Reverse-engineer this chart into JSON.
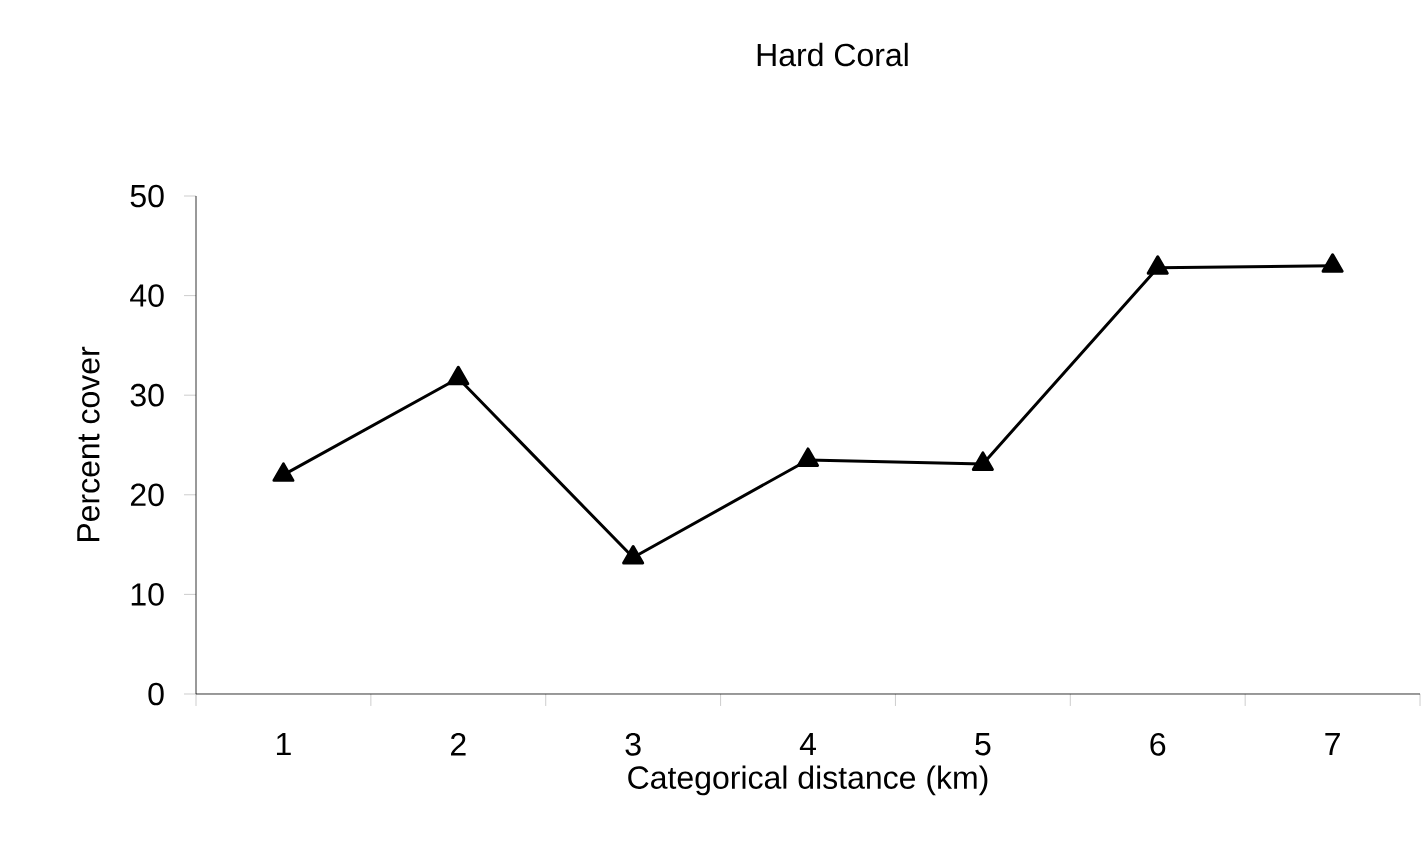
{
  "chart_data": {
    "type": "line",
    "title": "Hard Coral",
    "xlabel": "Categorical distance (km)",
    "ylabel": "Percent cover",
    "categories": [
      "1",
      "2",
      "3",
      "4",
      "5",
      "6",
      "7"
    ],
    "series": [
      {
        "color": "#000000",
        "values": [
          22,
          31.7,
          13.7,
          23.5,
          23.1,
          42.8,
          43.0
        ]
      }
    ],
    "ylim": [
      0,
      50
    ],
    "yticks": [
      0,
      10,
      20,
      30,
      40,
      50
    ],
    "marker": "triangle",
    "line_style": "solid"
  }
}
